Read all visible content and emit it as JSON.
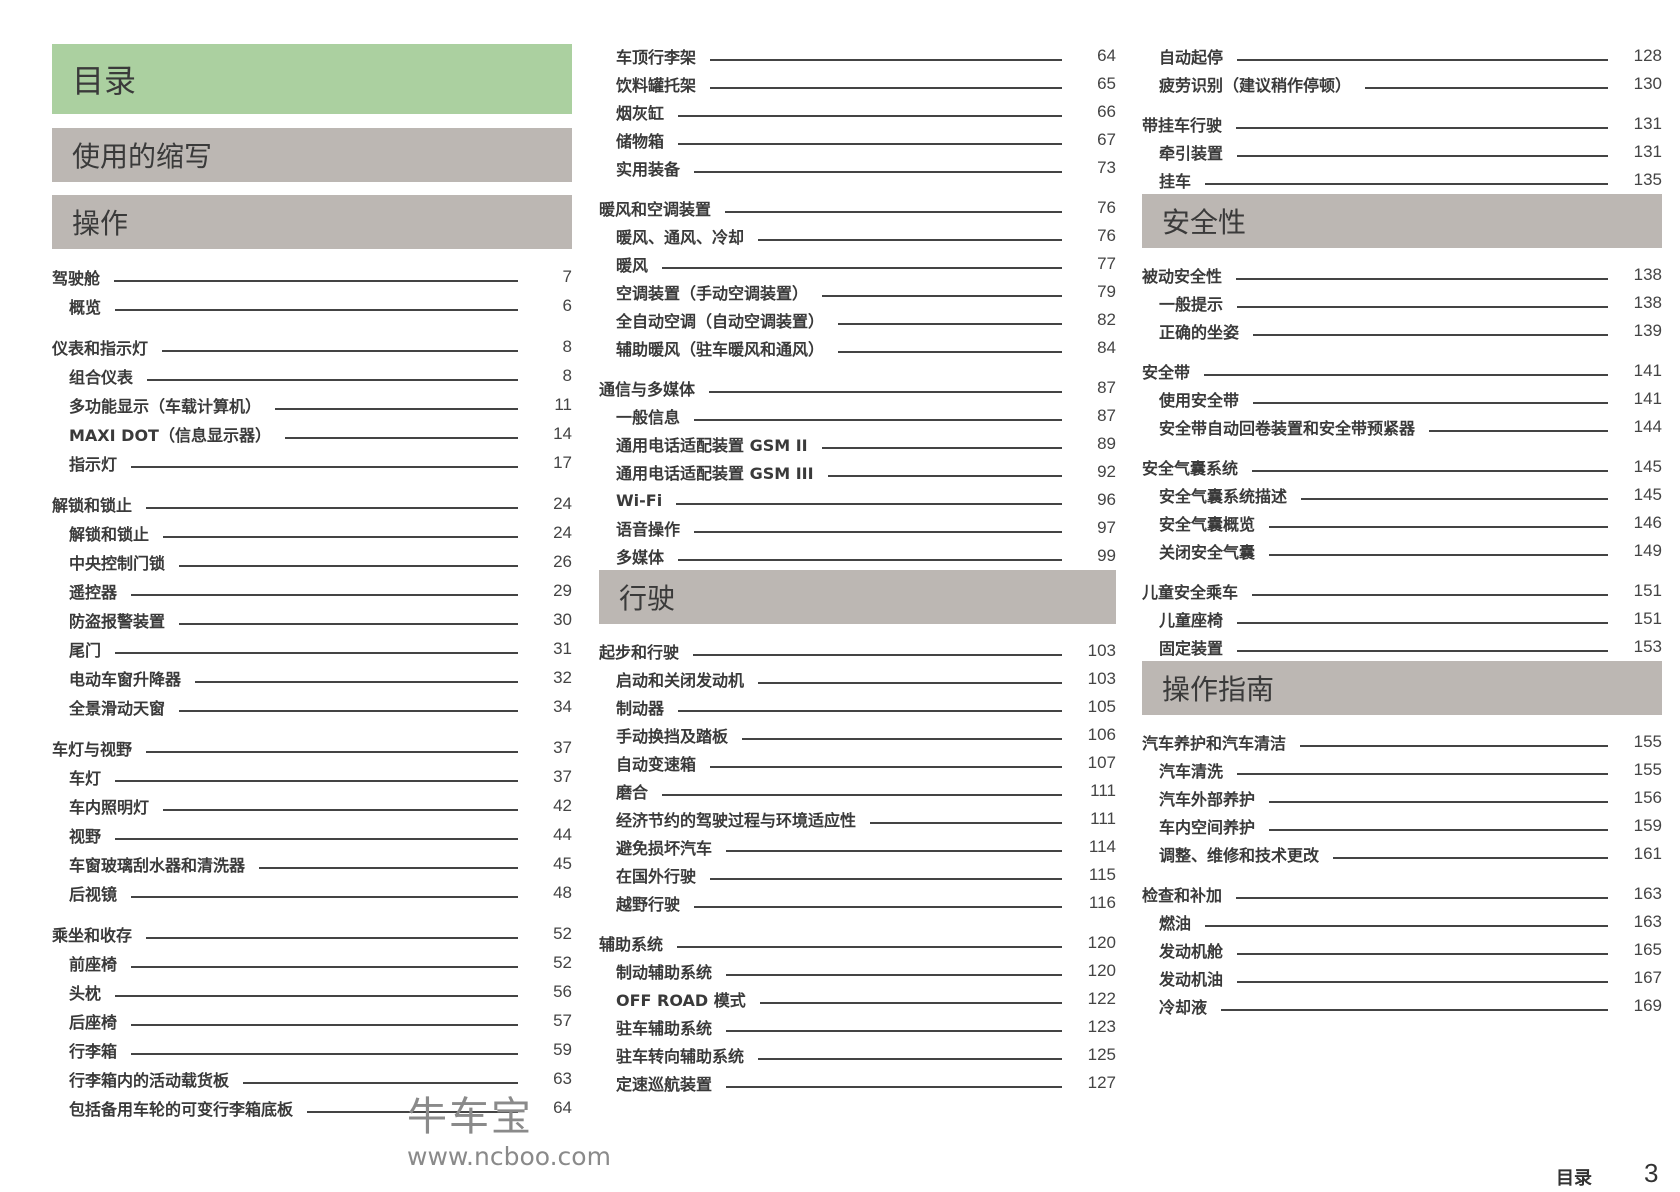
{
  "colors": {
    "title_bar": "#abd0a0",
    "section_bar": "#bcb7b3",
    "text": "#333333"
  },
  "columns": [
    [
      {
        "type": "header",
        "style": "title",
        "text": "目录"
      },
      {
        "type": "header",
        "style": "section",
        "text": "使用的缩写"
      },
      {
        "type": "header",
        "style": "section",
        "text": "操作"
      },
      {
        "type": "group",
        "items": [
          {
            "label": "驾驶舱",
            "page": "7",
            "level": 0
          },
          {
            "label": "概览",
            "page": "6",
            "level": 1
          }
        ]
      },
      {
        "type": "group",
        "items": [
          {
            "label": "仪表和指示灯",
            "page": "8",
            "level": 0
          },
          {
            "label": "组合仪表",
            "page": "8",
            "level": 1
          },
          {
            "label": "多功能显示（车载计算机）",
            "page": "11",
            "level": 1
          },
          {
            "label": "MAXI DOT（信息显示器）",
            "page": "14",
            "level": 1
          },
          {
            "label": "指示灯",
            "page": "17",
            "level": 1
          }
        ]
      },
      {
        "type": "group",
        "items": [
          {
            "label": "解锁和锁止",
            "page": "24",
            "level": 0
          },
          {
            "label": "解锁和锁止",
            "page": "24",
            "level": 1
          },
          {
            "label": "中央控制门锁",
            "page": "26",
            "level": 1
          },
          {
            "label": "遥控器",
            "page": "29",
            "level": 1
          },
          {
            "label": "防盗报警装置",
            "page": "30",
            "level": 1
          },
          {
            "label": "尾门",
            "page": "31",
            "level": 1
          },
          {
            "label": "电动车窗升降器",
            "page": "32",
            "level": 1
          },
          {
            "label": "全景滑动天窗",
            "page": "34",
            "level": 1
          }
        ]
      },
      {
        "type": "group",
        "items": [
          {
            "label": "车灯与视野",
            "page": "37",
            "level": 0
          },
          {
            "label": "车灯",
            "page": "37",
            "level": 1
          },
          {
            "label": "车内照明灯",
            "page": "42",
            "level": 1
          },
          {
            "label": "视野",
            "page": "44",
            "level": 1
          },
          {
            "label": "车窗玻璃刮水器和清洗器",
            "page": "45",
            "level": 1
          },
          {
            "label": "后视镜",
            "page": "48",
            "level": 1
          }
        ]
      },
      {
        "type": "group",
        "items": [
          {
            "label": "乘坐和收存",
            "page": "52",
            "level": 0
          },
          {
            "label": "前座椅",
            "page": "52",
            "level": 1
          },
          {
            "label": "头枕",
            "page": "56",
            "level": 1
          },
          {
            "label": "后座椅",
            "page": "57",
            "level": 1
          },
          {
            "label": "行李箱",
            "page": "59",
            "level": 1
          },
          {
            "label": "行李箱内的活动载货板",
            "page": "63",
            "level": 1
          },
          {
            "label": "包括备用车轮的可变行李箱底板",
            "page": "64",
            "level": 1
          }
        ]
      }
    ],
    [
      {
        "type": "group",
        "items": [
          {
            "label": "车顶行李架",
            "page": "64",
            "level": 1
          },
          {
            "label": "饮料罐托架",
            "page": "65",
            "level": 1
          },
          {
            "label": "烟灰缸",
            "page": "66",
            "level": 1
          },
          {
            "label": "储物箱",
            "page": "67",
            "level": 1
          },
          {
            "label": "实用装备",
            "page": "73",
            "level": 1
          }
        ]
      },
      {
        "type": "group",
        "items": [
          {
            "label": "暖风和空调装置",
            "page": "76",
            "level": 0
          },
          {
            "label": "暖风、通风、冷却",
            "page": "76",
            "level": 1
          },
          {
            "label": "暖风",
            "page": "77",
            "level": 1
          },
          {
            "label": "空调装置（手动空调装置）",
            "page": "79",
            "level": 1
          },
          {
            "label": "全自动空调（自动空调装置）",
            "page": "82",
            "level": 1
          },
          {
            "label": "辅助暖风（驻车暖风和通风）",
            "page": "84",
            "level": 1
          }
        ]
      },
      {
        "type": "group",
        "items": [
          {
            "label": "通信与多媒体",
            "page": "87",
            "level": 0
          },
          {
            "label": "一般信息",
            "page": "87",
            "level": 1
          },
          {
            "label": "通用电话适配装置 GSM II",
            "page": "89",
            "level": 1
          },
          {
            "label": "通用电话适配装置 GSM III",
            "page": "92",
            "level": 1
          },
          {
            "label": "Wi-Fi",
            "page": "96",
            "level": 1
          },
          {
            "label": "语音操作",
            "page": "97",
            "level": 1
          },
          {
            "label": "多媒体",
            "page": "99",
            "level": 1
          }
        ]
      },
      {
        "type": "header",
        "style": "section",
        "text": "行驶"
      },
      {
        "type": "group",
        "items": [
          {
            "label": "起步和行驶",
            "page": "103",
            "level": 0
          },
          {
            "label": "启动和关闭发动机",
            "page": "103",
            "level": 1
          },
          {
            "label": "制动器",
            "page": "105",
            "level": 1
          },
          {
            "label": "手动换挡及踏板",
            "page": "106",
            "level": 1
          },
          {
            "label": "自动变速箱",
            "page": "107",
            "level": 1
          },
          {
            "label": "磨合",
            "page": "111",
            "level": 1
          },
          {
            "label": "经济节约的驾驶过程与环境适应性",
            "page": "111",
            "level": 1
          },
          {
            "label": "避免损坏汽车",
            "page": "114",
            "level": 1
          },
          {
            "label": "在国外行驶",
            "page": "115",
            "level": 1
          },
          {
            "label": "越野行驶",
            "page": "116",
            "level": 1
          }
        ]
      },
      {
        "type": "group",
        "items": [
          {
            "label": "辅助系统",
            "page": "120",
            "level": 0
          },
          {
            "label": "制动辅助系统",
            "page": "120",
            "level": 1
          },
          {
            "label": "OFF ROAD 模式",
            "page": "122",
            "level": 1
          },
          {
            "label": "驻车辅助系统",
            "page": "123",
            "level": 1
          },
          {
            "label": "驻车转向辅助系统",
            "page": "125",
            "level": 1
          },
          {
            "label": "定速巡航装置",
            "page": "127",
            "level": 1
          }
        ]
      }
    ],
    [
      {
        "type": "group",
        "items": [
          {
            "label": "自动起停",
            "page": "128",
            "level": 1
          },
          {
            "label": "疲劳识别（建议稍作停顿）",
            "page": "130",
            "level": 1
          }
        ]
      },
      {
        "type": "group",
        "items": [
          {
            "label": "带挂车行驶",
            "page": "131",
            "level": 0
          },
          {
            "label": "牵引装置",
            "page": "131",
            "level": 1
          },
          {
            "label": "挂车",
            "page": "135",
            "level": 1
          }
        ]
      },
      {
        "type": "header",
        "style": "section",
        "text": "安全性"
      },
      {
        "type": "group",
        "items": [
          {
            "label": "被动安全性",
            "page": "138",
            "level": 0
          },
          {
            "label": "一般提示",
            "page": "138",
            "level": 1
          },
          {
            "label": "正确的坐姿",
            "page": "139",
            "level": 1
          }
        ]
      },
      {
        "type": "group",
        "items": [
          {
            "label": "安全带",
            "page": "141",
            "level": 0
          },
          {
            "label": "使用安全带",
            "page": "141",
            "level": 1
          },
          {
            "label": "安全带自动回卷装置和安全带预紧器",
            "page": "144",
            "level": 1
          }
        ]
      },
      {
        "type": "group",
        "items": [
          {
            "label": "安全气囊系统",
            "page": "145",
            "level": 0
          },
          {
            "label": "安全气囊系统描述",
            "page": "145",
            "level": 1
          },
          {
            "label": "安全气囊概览",
            "page": "146",
            "level": 1
          },
          {
            "label": "关闭安全气囊",
            "page": "149",
            "level": 1
          }
        ]
      },
      {
        "type": "group",
        "items": [
          {
            "label": "儿童安全乘车",
            "page": "151",
            "level": 0
          },
          {
            "label": "儿童座椅",
            "page": "151",
            "level": 1
          },
          {
            "label": "固定装置",
            "page": "153",
            "level": 1
          }
        ]
      },
      {
        "type": "header",
        "style": "section",
        "text": "操作指南"
      },
      {
        "type": "group",
        "items": [
          {
            "label": "汽车养护和汽车清洁",
            "page": "155",
            "level": 0
          },
          {
            "label": "汽车清洗",
            "page": "155",
            "level": 1
          },
          {
            "label": "汽车外部养护",
            "page": "156",
            "level": 1
          },
          {
            "label": "车内空间养护",
            "page": "159",
            "level": 1
          },
          {
            "label": "调整、维修和技术更改",
            "page": "161",
            "level": 1
          }
        ]
      },
      {
        "type": "group",
        "items": [
          {
            "label": "检查和补加",
            "page": "163",
            "level": 0
          },
          {
            "label": "燃油",
            "page": "163",
            "level": 1
          },
          {
            "label": "发动机舱",
            "page": "165",
            "level": 1
          },
          {
            "label": "发动机油",
            "page": "167",
            "level": 1
          },
          {
            "label": "冷却液",
            "page": "169",
            "level": 1
          }
        ]
      }
    ]
  ],
  "watermark": {
    "logo_text": "牛车宝",
    "url": "www.ncboo.com"
  },
  "footer": {
    "section": "目录",
    "page_number": "3"
  }
}
